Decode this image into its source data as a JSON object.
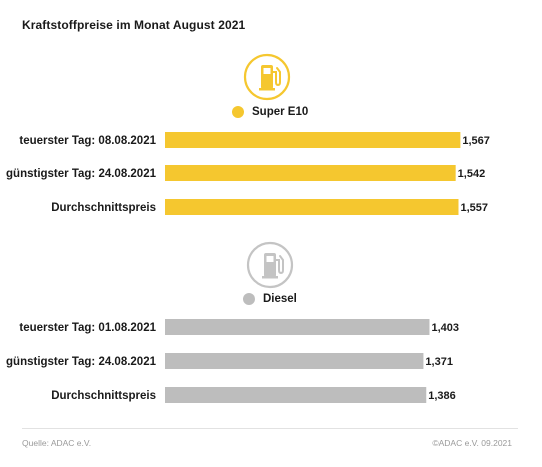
{
  "title": "Kraftstoffpreise im Monat August 2021",
  "source": "Quelle: ADAC e.V.",
  "copyright": "©ADAC e.V. 09.2021",
  "colors": {
    "super": "#f5c72f",
    "diesel": "#bdbdbd",
    "icon_super": "#f5c72f",
    "icon_diesel": "#c4c4c4"
  },
  "chart_data": {
    "type": "bar",
    "orientation": "horizontal",
    "groups": [
      {
        "name": "Super E10",
        "icon": "fuel-pump-icon",
        "color": "#f5c72f",
        "categories": [
          "teuerster Tag: 08.08.2021",
          "günstigster Tag: 24.08.2021",
          "Durchschnittspreis"
        ],
        "values": [
          1.567,
          1.542,
          1.557
        ],
        "labels": [
          "1,567",
          "1,542",
          "1,557"
        ]
      },
      {
        "name": "Diesel",
        "icon": "fuel-pump-icon",
        "color": "#bdbdbd",
        "categories": [
          "teuerster Tag: 01.08.2021",
          "günstigster Tag: 24.08.2021",
          "Durchschnittspreis"
        ],
        "values": [
          1.403,
          1.371,
          1.386
        ],
        "labels": [
          "1,403",
          "1,371",
          "1,386"
        ]
      }
    ],
    "axis_visible": false,
    "grid": false
  }
}
